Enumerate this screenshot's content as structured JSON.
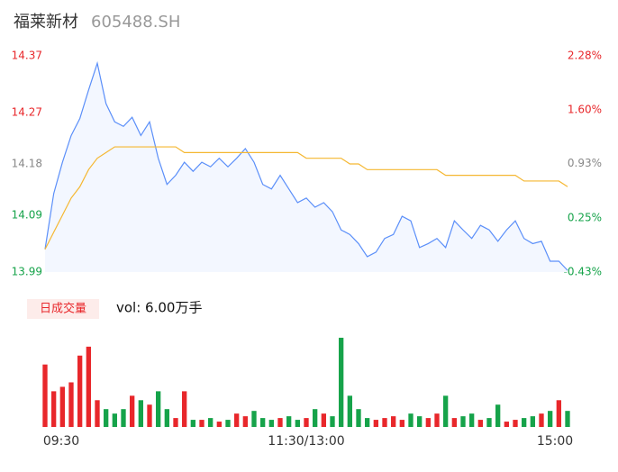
{
  "header": {
    "name": "福莱新材",
    "code": "605488.SH"
  },
  "chart_data": [
    {
      "type": "line",
      "series": [
        {
          "color": "#5b8ff9",
          "area": "#f3f7ff",
          "values": [
            14.03,
            14.128,
            14.183,
            14.23,
            14.26,
            14.31,
            14.357,
            14.286,
            14.254,
            14.246,
            14.262,
            14.23,
            14.254,
            14.19,
            14.144,
            14.16,
            14.183,
            14.167,
            14.183,
            14.175,
            14.19,
            14.175,
            14.19,
            14.207,
            14.183,
            14.144,
            14.136,
            14.16,
            14.136,
            14.112,
            14.12,
            14.104,
            14.112,
            14.096,
            14.064,
            14.056,
            14.04,
            14.017,
            14.025,
            14.049,
            14.056,
            14.088,
            14.08,
            14.033,
            14.04,
            14.049,
            14.033,
            14.08,
            14.064,
            14.049,
            14.072,
            14.064,
            14.044,
            14.064,
            14.08,
            14.049,
            14.04,
            14.044,
            14.009,
            14.009,
            13.993
          ]
        },
        {
          "color": "#f5b731",
          "values": [
            14.03,
            14.06,
            14.09,
            14.12,
            14.14,
            14.17,
            14.19,
            14.2,
            14.21,
            14.21,
            14.21,
            14.21,
            14.21,
            14.21,
            14.21,
            14.21,
            14.2,
            14.2,
            14.2,
            14.2,
            14.2,
            14.2,
            14.2,
            14.2,
            14.2,
            14.2,
            14.2,
            14.2,
            14.2,
            14.2,
            14.19,
            14.19,
            14.19,
            14.19,
            14.19,
            14.18,
            14.18,
            14.17,
            14.17,
            14.17,
            14.17,
            14.17,
            14.17,
            14.17,
            14.17,
            14.17,
            14.16,
            14.16,
            14.16,
            14.16,
            14.16,
            14.16,
            14.16,
            14.16,
            14.16,
            14.15,
            14.15,
            14.15,
            14.15,
            14.15,
            14.14
          ]
        }
      ],
      "ylim": [
        13.99,
        14.37
      ],
      "yticks": [
        14.37,
        14.27,
        14.18,
        14.09,
        13.99
      ],
      "y2lim": [
        -0.43,
        2.28
      ],
      "y2ticks": [
        {
          "value": 2.28,
          "label": "2.28%"
        },
        {
          "value": 1.6,
          "label": "1.60%"
        },
        {
          "value": 0.93,
          "label": "0.93%"
        },
        {
          "value": 0.25,
          "label": "0.25%"
        },
        {
          "value": -0.43,
          "label": "-0.43%"
        }
      ],
      "tick_colors": [
        "#e8272b",
        "#e8272b",
        "#888888",
        "#16a34a",
        "#16a34a"
      ]
    },
    {
      "type": "bar",
      "title": "日成交量",
      "subtitle": "vol: 6.00万手",
      "categories": [
        "09:30",
        null,
        null,
        null,
        null,
        null,
        null,
        null,
        null,
        null,
        null,
        null,
        null,
        null,
        null,
        null,
        null,
        null,
        null,
        null,
        null,
        null,
        null,
        null,
        null,
        null,
        null,
        null,
        null,
        null,
        "11:30/13:00",
        null,
        null,
        null,
        null,
        null,
        null,
        null,
        null,
        null,
        null,
        null,
        null,
        null,
        null,
        null,
        null,
        null,
        null,
        null,
        null,
        null,
        null,
        null,
        null,
        null,
        null,
        null,
        null,
        null,
        "15:00"
      ],
      "values": [
        70,
        40,
        45,
        50,
        80,
        90,
        30,
        20,
        15,
        20,
        35,
        30,
        25,
        40,
        20,
        10,
        40,
        8,
        8,
        10,
        6,
        8,
        15,
        12,
        18,
        10,
        8,
        10,
        12,
        8,
        10,
        20,
        15,
        12,
        100,
        35,
        20,
        10,
        8,
        10,
        12,
        8,
        15,
        12,
        10,
        15,
        35,
        10,
        12,
        15,
        8,
        10,
        25,
        6,
        8,
        10,
        12,
        15,
        18,
        30,
        18
      ],
      "ylim": [
        0,
        105
      ],
      "up_color": "#e8272b",
      "down_color": "#16a34a"
    }
  ]
}
